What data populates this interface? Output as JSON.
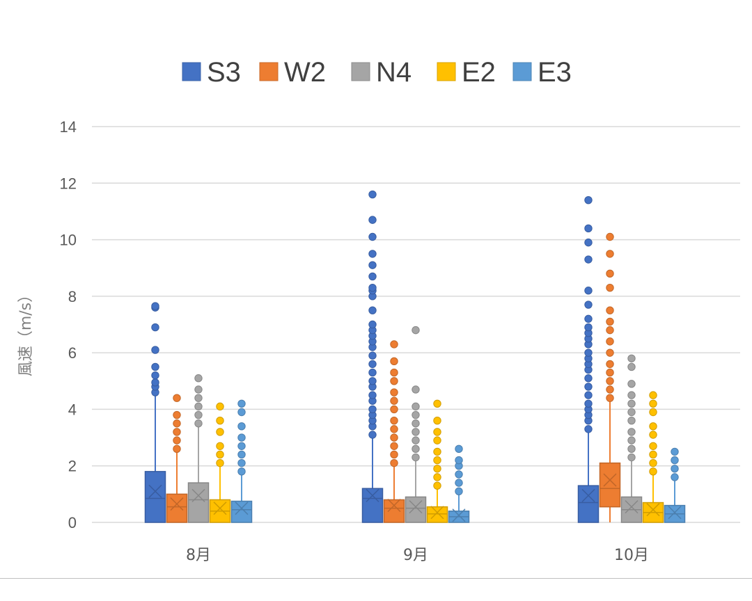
{
  "chart_data": {
    "type": "boxplot",
    "title": "",
    "xlabel": "",
    "ylabel": "風速（m/s）",
    "ylim": [
      0,
      14
    ],
    "yticks": [
      0,
      2,
      4,
      6,
      8,
      10,
      12,
      14
    ],
    "grid": true,
    "legend_position": "top",
    "categories": [
      "8月",
      "9月",
      "10月"
    ],
    "series": [
      {
        "name": "S3",
        "color": "#4472C4",
        "boxes": [
          {
            "q1": 0,
            "median": 0.85,
            "q3": 1.8,
            "mean": 1.1,
            "whisker_low": 0,
            "whisker_high": 4.5,
            "outliers": [
              4.6,
              4.8,
              4.95,
              5.2,
              5.5,
              6.1,
              6.9,
              7.6,
              7.65
            ]
          },
          {
            "q1": 0,
            "median": 0.85,
            "q3": 1.2,
            "mean": 0.95,
            "whisker_low": 0,
            "whisker_high": 3.0,
            "outliers": [
              3.1,
              3.4,
              3.6,
              3.8,
              4.0,
              4.3,
              4.5,
              4.8,
              5.0,
              5.3,
              5.6,
              5.9,
              6.2,
              6.4,
              6.6,
              6.8,
              7.0,
              7.5,
              8.0,
              8.2,
              8.3,
              8.7,
              9.1,
              9.5,
              10.1,
              10.7,
              11.6
            ]
          },
          {
            "q1": 0,
            "median": 0.7,
            "q3": 1.3,
            "mean": 0.95,
            "whisker_low": 0,
            "whisker_high": 3.2,
            "outliers": [
              3.3,
              3.6,
              3.8,
              4.0,
              4.2,
              4.5,
              4.8,
              5.1,
              5.4,
              5.6,
              5.8,
              6.0,
              6.3,
              6.5,
              6.7,
              6.9,
              7.2,
              7.7,
              8.2,
              9.3,
              9.9,
              10.4,
              11.4
            ]
          }
        ]
      },
      {
        "name": "W2",
        "color": "#ED7D31",
        "boxes": [
          {
            "q1": 0,
            "median": 0.55,
            "q3": 1.0,
            "mean": 0.65,
            "whisker_low": 0,
            "whisker_high": 2.5,
            "outliers": [
              2.6,
              2.9,
              3.2,
              3.5,
              3.8,
              4.4
            ]
          },
          {
            "q1": 0,
            "median": 0.5,
            "q3": 0.8,
            "mean": 0.6,
            "whisker_low": 0,
            "whisker_high": 2.0,
            "outliers": [
              2.1,
              2.4,
              2.7,
              3.0,
              3.3,
              3.6,
              4.0,
              4.3,
              4.6,
              5.0,
              5.3,
              5.7,
              6.3
            ]
          },
          {
            "q1": 0.55,
            "median": 1.2,
            "q3": 2.1,
            "mean": 1.5,
            "whisker_low": 0,
            "whisker_high": 4.3,
            "outliers": [
              4.4,
              4.7,
              5.0,
              5.3,
              5.6,
              6.0,
              6.4,
              6.8,
              7.1,
              7.5,
              8.3,
              8.8,
              9.5,
              10.1
            ]
          }
        ]
      },
      {
        "name": "N4",
        "color": "#A5A5A5",
        "boxes": [
          {
            "q1": 0,
            "median": 0.8,
            "q3": 1.4,
            "mean": 0.95,
            "whisker_low": 0,
            "whisker_high": 3.4,
            "outliers": [
              3.5,
              3.8,
              4.1,
              4.4,
              4.7,
              5.1
            ]
          },
          {
            "q1": 0,
            "median": 0.5,
            "q3": 0.9,
            "mean": 0.55,
            "whisker_low": 0,
            "whisker_high": 2.2,
            "outliers": [
              2.3,
              2.6,
              2.9,
              3.2,
              3.5,
              3.8,
              4.1,
              4.7,
              6.8
            ]
          },
          {
            "q1": 0,
            "median": 0.45,
            "q3": 0.9,
            "mean": 0.55,
            "whisker_low": 0,
            "whisker_high": 2.2,
            "outliers": [
              2.3,
              2.6,
              2.9,
              3.2,
              3.6,
              3.9,
              4.2,
              4.5,
              4.9,
              5.5,
              5.8
            ]
          }
        ]
      },
      {
        "name": "E2",
        "color": "#FFC000",
        "boxes": [
          {
            "q1": 0,
            "median": 0.4,
            "q3": 0.8,
            "mean": 0.5,
            "whisker_low": 0,
            "whisker_high": 2.0,
            "outliers": [
              2.1,
              2.4,
              2.7,
              3.2,
              3.6,
              4.1
            ]
          },
          {
            "q1": 0,
            "median": 0.3,
            "q3": 0.55,
            "mean": 0.35,
            "whisker_low": 0,
            "whisker_high": 1.2,
            "outliers": [
              1.3,
              1.6,
              1.9,
              2.2,
              2.5,
              2.9,
              3.2,
              3.6,
              4.2
            ]
          },
          {
            "q1": 0,
            "median": 0.35,
            "q3": 0.7,
            "mean": 0.45,
            "whisker_low": 0,
            "whisker_high": 1.7,
            "outliers": [
              1.8,
              2.1,
              2.4,
              2.7,
              3.1,
              3.4,
              3.9,
              4.2,
              4.5
            ]
          }
        ]
      },
      {
        "name": "E3",
        "color": "#5B9BD5",
        "boxes": [
          {
            "q1": 0,
            "median": 0.45,
            "q3": 0.75,
            "mean": 0.5,
            "whisker_low": 0,
            "whisker_high": 1.7,
            "outliers": [
              1.8,
              2.1,
              2.4,
              2.7,
              3.0,
              3.4,
              3.9,
              4.2
            ]
          },
          {
            "q1": 0,
            "median": 0.2,
            "q3": 0.4,
            "mean": 0.25,
            "whisker_low": 0,
            "whisker_high": 1.0,
            "outliers": [
              1.1,
              1.4,
              1.7,
              2.0,
              2.2,
              2.6
            ]
          },
          {
            "q1": 0,
            "median": 0.3,
            "q3": 0.6,
            "mean": 0.35,
            "whisker_low": 0,
            "whisker_high": 1.5,
            "outliers": [
              1.6,
              1.9,
              2.2,
              2.5
            ]
          }
        ]
      }
    ]
  }
}
